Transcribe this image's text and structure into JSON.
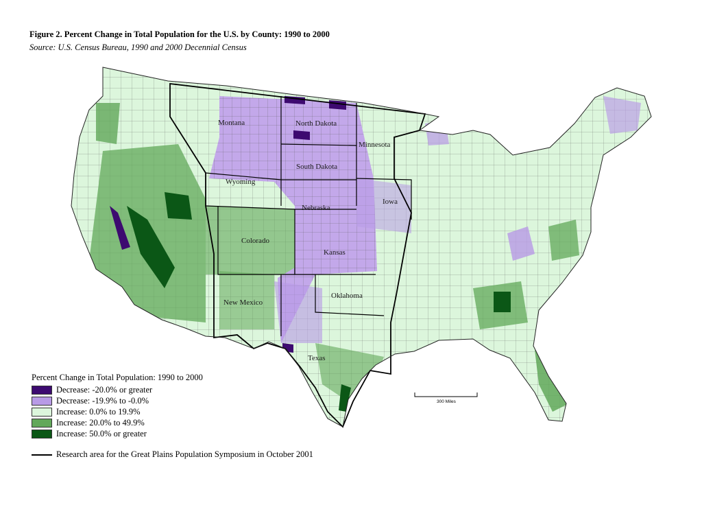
{
  "figure": {
    "title": "Figure 2. Percent Change in Total Population for the U.S. by County: 1990 to 2000",
    "source": "Source: U.S. Census Bureau, 1990 and 2000 Decennial Census"
  },
  "map": {
    "state_labels": [
      "Montana",
      "North Dakota",
      "Minnesota",
      "South Dakota",
      "Wyoming",
      "Nebraska",
      "Iowa",
      "Colorado",
      "Kansas",
      "Oklahoma",
      "New Mexico",
      "Texas"
    ],
    "scale_bar_label": "300 Miles"
  },
  "legend": {
    "title": "Percent Change in Total Population: 1990 to 2000",
    "items": [
      {
        "label": "Decrease: -20.0% or greater",
        "color": "#3d0a70"
      },
      {
        "label": "Decrease: -19.9% to -0.0%",
        "color": "#b89ae6"
      },
      {
        "label": "Increase: 0.0% to 19.9%",
        "color": "#dcf6dc"
      },
      {
        "label": "Increase: 20.0% to 49.9%",
        "color": "#62a85a"
      },
      {
        "label": "Increase: 50.0% or greater",
        "color": "#0b5716"
      }
    ],
    "research_area_label": "Research area for the Great Plains Population Symposium in October 2001"
  }
}
